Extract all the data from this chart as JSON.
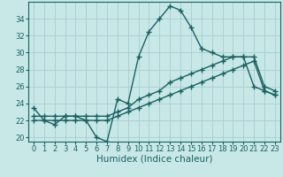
{
  "xlabel": "Humidex (Indice chaleur)",
  "background_color": "#c8e8e8",
  "grid_color": "#a8cccc",
  "line_color": "#1a6060",
  "x": [
    0,
    1,
    2,
    3,
    4,
    5,
    6,
    7,
    8,
    9,
    10,
    11,
    12,
    13,
    14,
    15,
    16,
    17,
    18,
    19,
    20,
    21,
    22,
    23
  ],
  "y_main": [
    23.5,
    22.0,
    21.5,
    22.5,
    22.5,
    22.0,
    20.0,
    19.5,
    24.5,
    24.0,
    29.5,
    32.5,
    34.0,
    35.5,
    35.0,
    33.0,
    30.5,
    30.0,
    29.5,
    29.5,
    29.5,
    26.0,
    25.5,
    25.0
  ],
  "y_trend1": [
    22.5,
    22.5,
    22.5,
    22.5,
    22.5,
    22.5,
    22.5,
    22.5,
    23.0,
    23.5,
    24.5,
    25.0,
    25.5,
    26.5,
    27.0,
    27.5,
    28.0,
    28.5,
    29.0,
    29.5,
    29.5,
    29.5,
    26.0,
    25.5
  ],
  "y_trend2": [
    22.0,
    22.0,
    22.0,
    22.0,
    22.0,
    22.0,
    22.0,
    22.0,
    22.5,
    23.0,
    23.5,
    24.0,
    24.5,
    25.0,
    25.5,
    26.0,
    26.5,
    27.0,
    27.5,
    28.0,
    28.5,
    29.0,
    25.5,
    25.0
  ],
  "ylim": [
    19.5,
    36.0
  ],
  "xlim": [
    -0.5,
    23.5
  ],
  "yticks": [
    20,
    22,
    24,
    26,
    28,
    30,
    32,
    34
  ],
  "xticks": [
    0,
    1,
    2,
    3,
    4,
    5,
    6,
    7,
    8,
    9,
    10,
    11,
    12,
    13,
    14,
    15,
    16,
    17,
    18,
    19,
    20,
    21,
    22,
    23
  ],
  "marker": "+",
  "markersize": 4,
  "linewidth": 1.0,
  "tick_fontsize": 6.0,
  "xlabel_fontsize": 7.5
}
